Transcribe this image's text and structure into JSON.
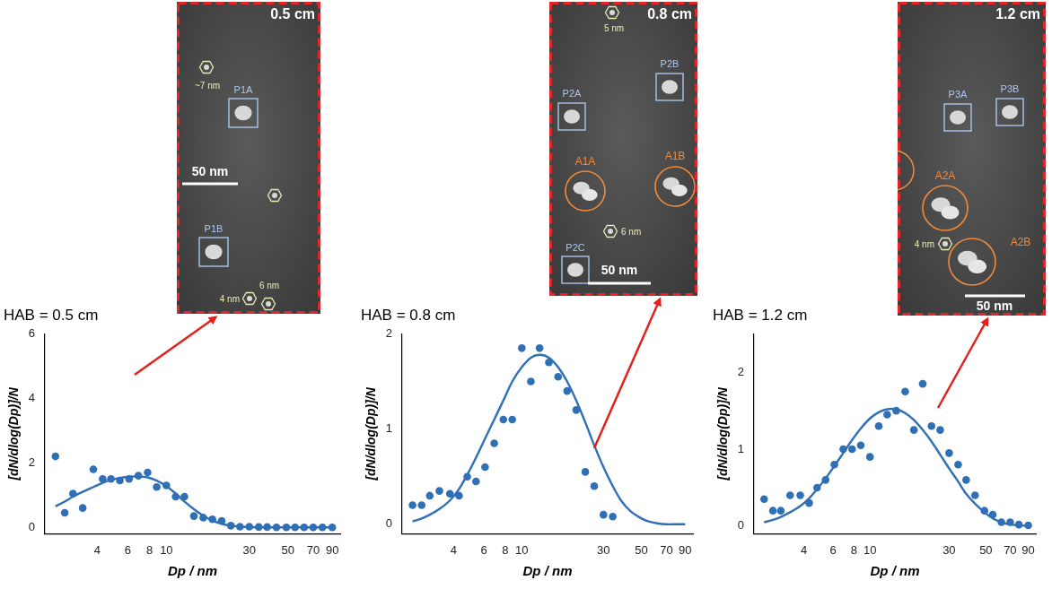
{
  "chart_data": [
    {
      "type": "scatter",
      "title": "HAB = 0.5 cm",
      "x_label": "Dp / nm",
      "y_label": "[dN/dlog(Dp)]/N",
      "x": [
        2.3,
        2.6,
        2.9,
        3.3,
        3.8,
        4.3,
        4.8,
        5.4,
        6.1,
        6.9,
        7.8,
        8.8,
        10,
        11.3,
        12.7,
        14.4,
        16.3,
        18.4,
        20.8,
        23.5,
        26.5,
        30,
        34,
        38,
        43,
        49,
        55,
        62,
        70,
        79,
        90
      ],
      "series": [
        {
          "type": "scatter",
          "marker": "circle",
          "color": "#2f6fb6",
          "values": [
            2.2,
            0.45,
            1.05,
            0.6,
            1.8,
            1.5,
            1.5,
            1.45,
            1.5,
            1.6,
            1.7,
            1.25,
            1.3,
            0.95,
            0.95,
            0.35,
            0.3,
            0.25,
            0.2,
            0.05,
            0.02,
            0.02,
            0.01,
            0.01,
            0,
            0,
            0,
            0,
            0,
            0,
            0
          ]
        },
        {
          "type": "line",
          "line_style": "solid",
          "color": "#2f6fb6",
          "values": [
            0.65,
            0.8,
            0.95,
            1.1,
            1.25,
            1.38,
            1.47,
            1.53,
            1.57,
            1.58,
            1.55,
            1.45,
            1.28,
            1.05,
            0.8,
            0.56,
            0.36,
            0.21,
            0.11,
            0.05,
            0.02,
            0.01,
            0,
            0,
            0,
            0,
            0,
            0,
            0,
            0,
            0
          ]
        }
      ],
      "xlim": [
        2,
        100
      ],
      "xticks": [
        4,
        6,
        8,
        10,
        30,
        50,
        70,
        90
      ],
      "log": "x",
      "ylim": [
        -0.2,
        6
      ],
      "yticks": [
        0,
        2,
        4,
        6
      ],
      "grid": false
    },
    {
      "type": "scatter",
      "title": "HAB = 0.8 cm",
      "x_label": "Dp / nm",
      "y_label": "[dN/dlog(Dp)]/N",
      "x": [
        2.3,
        2.6,
        2.9,
        3.3,
        3.8,
        4.3,
        4.8,
        5.4,
        6.1,
        6.9,
        7.8,
        8.8,
        10,
        11.3,
        12.7,
        14.4,
        16.3,
        18.4,
        20.8,
        23.5,
        26.5,
        30,
        34,
        38,
        43,
        49,
        55,
        62,
        70,
        79,
        90
      ],
      "series": [
        {
          "type": "scatter",
          "marker": "circle",
          "color": "#2f6fb6",
          "values": [
            0.2,
            0.2,
            0.3,
            0.35,
            0.32,
            0.3,
            0.5,
            0.45,
            0.6,
            0.85,
            1.1,
            1.1,
            1.85,
            1.5,
            1.85,
            1.7,
            1.55,
            1.4,
            1.2,
            0.55,
            0.4,
            0.1,
            0.08,
            null,
            null,
            null,
            null,
            null,
            null,
            null,
            null
          ]
        },
        {
          "type": "line",
          "line_style": "solid",
          "color": "#2f6fb6",
          "values": [
            0.03,
            0.06,
            0.1,
            0.16,
            0.25,
            0.37,
            0.52,
            0.7,
            0.9,
            1.1,
            1.3,
            1.5,
            1.65,
            1.75,
            1.78,
            1.75,
            1.65,
            1.5,
            1.3,
            1.07,
            0.83,
            0.6,
            0.4,
            0.25,
            0.14,
            0.07,
            0.03,
            0.01,
            0,
            0,
            0
          ]
        }
      ],
      "xlim": [
        2,
        100
      ],
      "xticks": [
        4,
        6,
        8,
        10,
        30,
        50,
        70,
        90
      ],
      "log": "x",
      "ylim": [
        -0.1,
        2
      ],
      "yticks": [
        0,
        1,
        2
      ],
      "grid": false
    },
    {
      "type": "scatter",
      "title": "HAB = 1.2 cm",
      "x_label": "Dp / nm",
      "y_label": "[dN/dlog(Dp)]/N",
      "x": [
        2.3,
        2.6,
        2.9,
        3.3,
        3.8,
        4.3,
        4.8,
        5.4,
        6.1,
        6.9,
        7.8,
        8.8,
        10,
        11.3,
        12.7,
        14.4,
        16.3,
        18.4,
        20.8,
        23.5,
        26.5,
        30,
        34,
        38,
        43,
        49,
        55,
        62,
        70,
        79,
        90
      ],
      "series": [
        {
          "type": "scatter",
          "marker": "circle",
          "color": "#2f6fb6",
          "values": [
            0.35,
            0.2,
            0.2,
            0.4,
            0.4,
            0.3,
            0.5,
            0.6,
            0.8,
            1.0,
            1.0,
            1.05,
            0.9,
            1.3,
            1.45,
            1.5,
            1.75,
            1.25,
            1.85,
            1.3,
            1.25,
            0.95,
            0.8,
            0.6,
            0.4,
            0.2,
            0.15,
            0.05,
            0.05,
            0.02,
            0.01
          ]
        },
        {
          "type": "line",
          "line_style": "solid",
          "color": "#2f6fb6",
          "values": [
            0.05,
            0.08,
            0.12,
            0.18,
            0.26,
            0.36,
            0.48,
            0.62,
            0.78,
            0.95,
            1.12,
            1.27,
            1.4,
            1.48,
            1.52,
            1.52,
            1.47,
            1.38,
            1.25,
            1.1,
            0.93,
            0.75,
            0.58,
            0.42,
            0.29,
            0.18,
            0.1,
            0.05,
            0.02,
            0.01,
            0
          ]
        }
      ],
      "xlim": [
        2,
        100
      ],
      "xticks": [
        4,
        6,
        8,
        10,
        30,
        50,
        70,
        90
      ],
      "log": "x",
      "ylim": [
        -0.1,
        2.5
      ],
      "yticks": [
        0,
        1,
        2
      ],
      "grid": false
    }
  ],
  "insets": [
    {
      "label": "0.5 cm",
      "scale_bar": "50 nm",
      "sizes": [
        "~7 nm",
        "4 nm",
        "6 nm"
      ],
      "primary_particles": [
        "P1A",
        "P1B"
      ],
      "aggregates": []
    },
    {
      "label": "0.8 cm",
      "scale_bar": "50 nm",
      "sizes": [
        "5 nm",
        "6 nm"
      ],
      "primary_particles": [
        "P2A",
        "P2B",
        "P2C"
      ],
      "aggregates": [
        "A1A",
        "A1B"
      ]
    },
    {
      "label": "1.2 cm",
      "scale_bar": "50 nm",
      "sizes": [
        "4 nm"
      ],
      "primary_particles": [
        "P3A",
        "P3B"
      ],
      "aggregates": [
        "A2A",
        "A2B"
      ]
    }
  ]
}
